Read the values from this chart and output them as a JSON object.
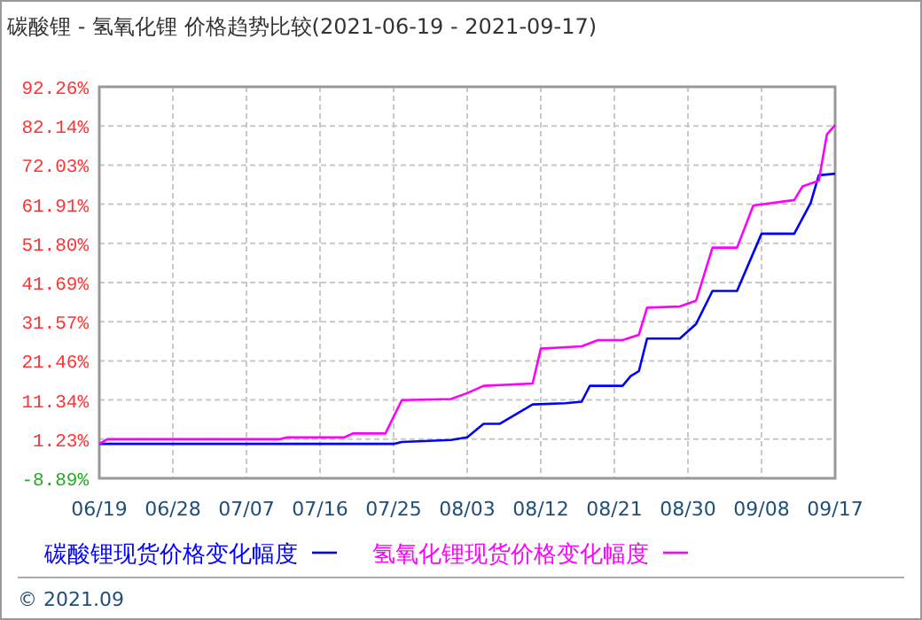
{
  "chart_data": {
    "type": "line",
    "title": "碳酸锂 - 氢氧化锂 价格趋势比较(2021-06-19 - 2021-09-17)",
    "xlim": [
      "2021-06-19",
      "2021-09-17"
    ],
    "xticks": [
      {
        "value": "2021-06-19",
        "label": "06/19"
      },
      {
        "value": "2021-06-28",
        "label": "06/28"
      },
      {
        "value": "2021-07-07",
        "label": "07/07"
      },
      {
        "value": "2021-07-16",
        "label": "07/16"
      },
      {
        "value": "2021-07-25",
        "label": "07/25"
      },
      {
        "value": "2021-08-03",
        "label": "08/03"
      },
      {
        "value": "2021-08-12",
        "label": "08/12"
      },
      {
        "value": "2021-08-21",
        "label": "08/21"
      },
      {
        "value": "2021-08-30",
        "label": "08/30"
      },
      {
        "value": "2021-09-08",
        "label": "09/08"
      },
      {
        "value": "2021-09-17",
        "label": "09/17"
      }
    ],
    "ylim": [
      -8.89,
      92.26
    ],
    "yticks": [
      {
        "value": -8.89,
        "label": "-8.89%"
      },
      {
        "value": 1.23,
        "label": "1.23%"
      },
      {
        "value": 11.34,
        "label": "11.34%"
      },
      {
        "value": 21.46,
        "label": "21.46%"
      },
      {
        "value": 31.57,
        "label": "31.57%"
      },
      {
        "value": 41.69,
        "label": "41.69%"
      },
      {
        "value": 51.8,
        "label": "51.80%"
      },
      {
        "value": 61.91,
        "label": "61.91%"
      },
      {
        "value": 72.03,
        "label": "72.03%"
      },
      {
        "value": 82.14,
        "label": "82.14%"
      },
      {
        "value": 92.26,
        "label": "92.26%"
      }
    ],
    "grid": true,
    "legend": "bottom",
    "marker": "none",
    "line_style": "solid",
    "series": [
      {
        "name": "碳酸锂现货价格变化幅度",
        "color": "#0000ff",
        "x": [
          "2021-06-19",
          "2021-07-25",
          "2021-07-26",
          "2021-08-01",
          "2021-08-03",
          "2021-08-05",
          "2021-08-07",
          "2021-08-11",
          "2021-08-15",
          "2021-08-17",
          "2021-08-18",
          "2021-08-22",
          "2021-08-23",
          "2021-08-24",
          "2021-08-25",
          "2021-08-29",
          "2021-08-31",
          "2021-09-02",
          "2021-09-05",
          "2021-09-08",
          "2021-09-12",
          "2021-09-14",
          "2021-09-15",
          "2021-09-17"
        ],
        "values": [
          0,
          0,
          0.5,
          1,
          1.7,
          5.2,
          5.2,
          10.2,
          10.5,
          10.9,
          15,
          15,
          17.5,
          18.8,
          27.2,
          27.2,
          31,
          39.5,
          39.5,
          54.3,
          54.3,
          62.2,
          69.4,
          69.8
        ]
      },
      {
        "name": "氢氧化锂现货价格变化幅度",
        "color": "#ff00ff",
        "x": [
          "2021-06-19",
          "2021-06-20",
          "2021-07-11",
          "2021-07-12",
          "2021-07-19",
          "2021-07-20",
          "2021-07-24",
          "2021-07-26",
          "2021-08-01",
          "2021-08-03",
          "2021-08-05",
          "2021-08-11",
          "2021-08-12",
          "2021-08-17",
          "2021-08-19",
          "2021-08-22",
          "2021-08-24",
          "2021-08-25",
          "2021-08-29",
          "2021-08-31",
          "2021-09-02",
          "2021-09-05",
          "2021-09-07",
          "2021-09-12",
          "2021-09-13",
          "2021-09-15",
          "2021-09-16",
          "2021-09-17"
        ],
        "values": [
          0,
          1.2,
          1.2,
          1.7,
          1.7,
          2.7,
          2.7,
          11.3,
          11.6,
          13.1,
          15,
          15.6,
          24.6,
          25.2,
          26.8,
          26.8,
          28.2,
          35.2,
          35.5,
          37,
          50.7,
          50.7,
          61.6,
          63,
          66.5,
          68,
          80,
          82.4
        ]
      }
    ],
    "annotations": [
      "© 2021.09"
    ]
  }
}
